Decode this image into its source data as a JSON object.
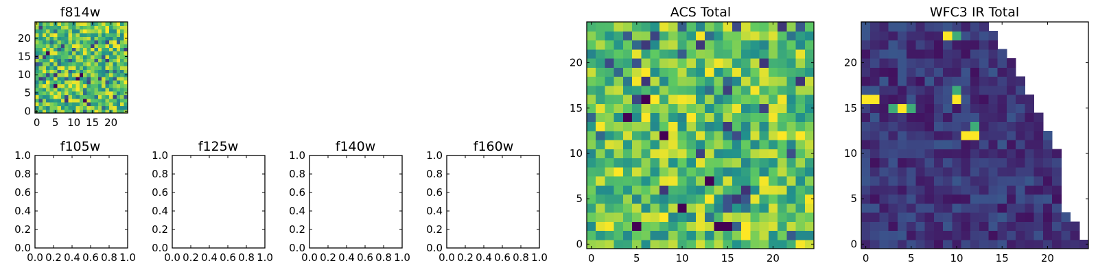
{
  "chart_data": [
    {
      "id": "f814w",
      "type": "heatmap",
      "title": "f814w",
      "colormap": "viridis",
      "grid_size": 25,
      "value_range": [
        0,
        1
      ],
      "triangle_mask": false,
      "hot_cells": [
        {
          "x": 2,
          "y": 17,
          "level": "max"
        },
        {
          "x": 3,
          "y": 16,
          "level": "min"
        },
        {
          "x": 11,
          "y": 9,
          "level": "min"
        },
        {
          "x": 12,
          "y": 10,
          "level": "min"
        },
        {
          "x": 13,
          "y": 3,
          "level": "min"
        },
        {
          "x": 5,
          "y": 7,
          "level": "min"
        }
      ],
      "xticks": [
        "0",
        "5",
        "10",
        "15",
        "20"
      ],
      "xtick_values": [
        0,
        5,
        10,
        15,
        20
      ],
      "yticks": [
        "0",
        "5",
        "10",
        "15",
        "20"
      ],
      "ytick_values": [
        0,
        5,
        10,
        15,
        20
      ],
      "axis_range": [
        -0.5,
        24.5
      ],
      "seed": 814
    },
    {
      "id": "f105w",
      "type": "heatmap",
      "title": "f105w",
      "empty": true,
      "xticks": [
        "0.0",
        "0.2",
        "0.4",
        "0.6",
        "0.8",
        "1.0"
      ],
      "xtick_values": [
        0,
        0.2,
        0.4,
        0.6,
        0.8,
        1
      ],
      "yticks": [
        "0.0",
        "0.2",
        "0.4",
        "0.6",
        "0.8",
        "1.0"
      ],
      "ytick_values": [
        0,
        0.2,
        0.4,
        0.6,
        0.8,
        1
      ],
      "axis_range": [
        0,
        1
      ]
    },
    {
      "id": "f125w",
      "type": "heatmap",
      "title": "f125w",
      "empty": true,
      "xticks": [
        "0.0",
        "0.2",
        "0.4",
        "0.6",
        "0.8",
        "1.0"
      ],
      "xtick_values": [
        0,
        0.2,
        0.4,
        0.6,
        0.8,
        1
      ],
      "yticks": [
        "0.0",
        "0.2",
        "0.4",
        "0.6",
        "0.8",
        "1.0"
      ],
      "ytick_values": [
        0,
        0.2,
        0.4,
        0.6,
        0.8,
        1
      ],
      "axis_range": [
        0,
        1
      ]
    },
    {
      "id": "f140w",
      "type": "heatmap",
      "title": "f140w",
      "empty": true,
      "xticks": [
        "0.0",
        "0.2",
        "0.4",
        "0.6",
        "0.8",
        "1.0"
      ],
      "xtick_values": [
        0,
        0.2,
        0.4,
        0.6,
        0.8,
        1
      ],
      "yticks": [
        "0.0",
        "0.2",
        "0.4",
        "0.6",
        "0.8",
        "1.0"
      ],
      "ytick_values": [
        0,
        0.2,
        0.4,
        0.6,
        0.8,
        1
      ],
      "axis_range": [
        0,
        1
      ]
    },
    {
      "id": "f160w",
      "type": "heatmap",
      "title": "f160w",
      "empty": true,
      "xticks": [
        "0.0",
        "0.2",
        "0.4",
        "0.6",
        "0.8",
        "1.0"
      ],
      "xtick_values": [
        0,
        0.2,
        0.4,
        0.6,
        0.8,
        1
      ],
      "yticks": [
        "0.0",
        "0.2",
        "0.4",
        "0.6",
        "0.8",
        "1.0"
      ],
      "ytick_values": [
        0,
        0.2,
        0.4,
        0.6,
        0.8,
        1
      ],
      "axis_range": [
        0,
        1
      ]
    },
    {
      "id": "acs-total",
      "type": "heatmap",
      "title": "ACS Total",
      "colormap": "viridis",
      "grid_size": 25,
      "value_range": [
        0,
        1
      ],
      "triangle_mask": false,
      "hot_cells": [
        {
          "x": 6,
          "y": 16,
          "level": "min"
        },
        {
          "x": 7,
          "y": 16,
          "level": "max"
        },
        {
          "x": 8,
          "y": 12,
          "level": "min"
        },
        {
          "x": 4,
          "y": 14,
          "level": "min"
        },
        {
          "x": 13,
          "y": 7,
          "level": "min"
        },
        {
          "x": 14,
          "y": 2,
          "level": "min"
        },
        {
          "x": 15,
          "y": 2,
          "level": "min"
        },
        {
          "x": 5,
          "y": 2,
          "level": "min"
        },
        {
          "x": 10,
          "y": 4,
          "level": "min"
        }
      ],
      "xticks": [
        "0",
        "5",
        "10",
        "15",
        "20"
      ],
      "xtick_values": [
        0,
        5,
        10,
        15,
        20
      ],
      "yticks": [
        "0",
        "5",
        "10",
        "15",
        "20"
      ],
      "ytick_values": [
        0,
        5,
        10,
        15,
        20
      ],
      "axis_range": [
        -0.5,
        24.5
      ],
      "seed": 1234
    },
    {
      "id": "wfc3-ir-total",
      "type": "heatmap",
      "title": "WFC3 IR Total",
      "colormap": "viridis",
      "grid_size": 25,
      "value_range": [
        0,
        1
      ],
      "triangle_mask": true,
      "mask_description": "upper-right triangle is empty (no data)",
      "hot_cells": [
        {
          "x": 9,
          "y": 23,
          "level": "max"
        },
        {
          "x": 10,
          "y": 23,
          "level": "high"
        },
        {
          "x": 0,
          "y": 16,
          "level": "max"
        },
        {
          "x": 1,
          "y": 16,
          "level": "max"
        },
        {
          "x": 4,
          "y": 15,
          "level": "max"
        },
        {
          "x": 3,
          "y": 15,
          "level": "high"
        },
        {
          "x": 5,
          "y": 15,
          "level": "high"
        },
        {
          "x": 10,
          "y": 16,
          "level": "max"
        },
        {
          "x": 10,
          "y": 17,
          "level": "high"
        },
        {
          "x": 11,
          "y": 12,
          "level": "max"
        },
        {
          "x": 12,
          "y": 12,
          "level": "max"
        },
        {
          "x": 12,
          "y": 13,
          "level": "high"
        }
      ],
      "xticks": [
        "0",
        "5",
        "10",
        "15",
        "20"
      ],
      "xtick_values": [
        0,
        5,
        10,
        15,
        20
      ],
      "yticks": [
        "0",
        "5",
        "10",
        "15",
        "20"
      ],
      "ytick_values": [
        0,
        5,
        10,
        15,
        20
      ],
      "axis_range": [
        -0.5,
        24.5
      ],
      "seed": 3
    }
  ]
}
